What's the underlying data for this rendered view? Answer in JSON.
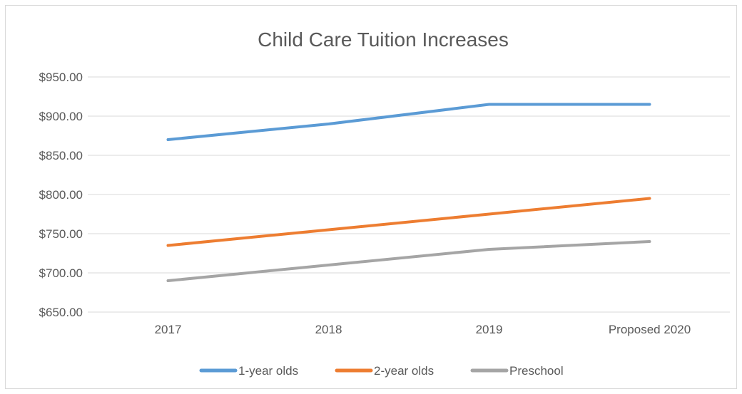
{
  "chart_data": {
    "type": "line",
    "title": "Child Care Tuition Increases",
    "xlabel": "",
    "ylabel": "",
    "categories": [
      "2017",
      "2018",
      "2019",
      "Proposed 2020"
    ],
    "ylim": [
      650,
      950
    ],
    "yticks": [
      650,
      700,
      750,
      800,
      850,
      900,
      950
    ],
    "ytick_labels": [
      "$650.00",
      "$700.00",
      "$750.00",
      "$800.00",
      "$850.00",
      "$900.00",
      "$950.00"
    ],
    "grid": true,
    "legend_position": "bottom",
    "series": [
      {
        "name": "1-year olds",
        "color": "#5b9bd5",
        "values": [
          870,
          890,
          915,
          915
        ]
      },
      {
        "name": "2-year olds",
        "color": "#ed7d31",
        "values": [
          735,
          755,
          775,
          795
        ]
      },
      {
        "name": "Preschool",
        "color": "#a5a5a5",
        "values": [
          690,
          710,
          730,
          740
        ]
      }
    ]
  }
}
